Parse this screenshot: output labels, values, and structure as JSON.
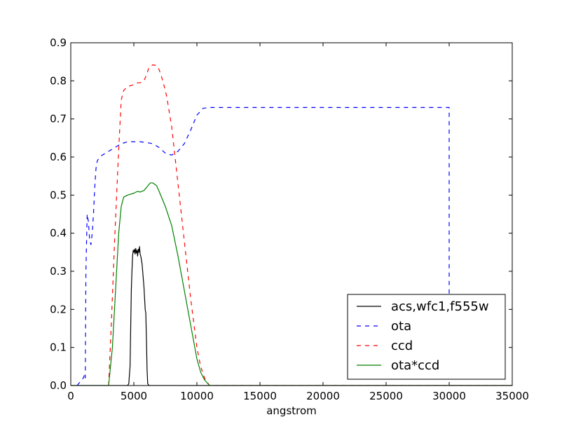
{
  "chart_data": {
    "type": "line",
    "title": "",
    "xlabel": "angstrom",
    "ylabel": "",
    "xlim": [
      0,
      35000
    ],
    "ylim": [
      0,
      0.9
    ],
    "xticks": [
      0,
      5000,
      10000,
      15000,
      20000,
      25000,
      30000,
      35000
    ],
    "xtick_labels": [
      "0",
      "5000",
      "10000",
      "15000",
      "20000",
      "25000",
      "30000",
      "35000"
    ],
    "yticks": [
      0.0,
      0.1,
      0.2,
      0.3,
      0.4,
      0.5,
      0.6,
      0.7,
      0.8,
      0.9
    ],
    "ytick_labels": [
      "0.0",
      "0.1",
      "0.2",
      "0.3",
      "0.4",
      "0.5",
      "0.6",
      "0.7",
      "0.8",
      "0.9"
    ],
    "grid": false,
    "legend_position": "bottom-right",
    "series": [
      {
        "name": "acs,wfc1,f555w",
        "color": "#000000",
        "dash": "solid",
        "points": [
          [
            0,
            0
          ],
          [
            4500,
            0
          ],
          [
            4600,
            0.005
          ],
          [
            4700,
            0.05
          ],
          [
            4750,
            0.15
          ],
          [
            4800,
            0.25
          ],
          [
            4850,
            0.3
          ],
          [
            4900,
            0.34
          ],
          [
            4950,
            0.355
          ],
          [
            5000,
            0.35
          ],
          [
            5050,
            0.358
          ],
          [
            5100,
            0.345
          ],
          [
            5150,
            0.36
          ],
          [
            5200,
            0.348
          ],
          [
            5250,
            0.355
          ],
          [
            5300,
            0.34
          ],
          [
            5350,
            0.358
          ],
          [
            5400,
            0.35
          ],
          [
            5450,
            0.365
          ],
          [
            5500,
            0.345
          ],
          [
            5550,
            0.34
          ],
          [
            5600,
            0.33
          ],
          [
            5650,
            0.32
          ],
          [
            5700,
            0.3
          ],
          [
            5800,
            0.26
          ],
          [
            5900,
            0.2
          ],
          [
            5950,
            0.19
          ],
          [
            6000,
            0.12
          ],
          [
            6050,
            0.04
          ],
          [
            6100,
            0.005
          ],
          [
            6200,
            0
          ],
          [
            35000,
            0
          ]
        ]
      },
      {
        "name": "ota",
        "color": "#0000ff",
        "dash": "dashed",
        "points": [
          [
            500,
            0
          ],
          [
            1000,
            0.02
          ],
          [
            1100,
            0.03
          ],
          [
            1150,
            0.02
          ],
          [
            1200,
            0.3
          ],
          [
            1300,
            0.45
          ],
          [
            1400,
            0.43
          ],
          [
            1500,
            0.38
          ],
          [
            1600,
            0.37
          ],
          [
            1700,
            0.4
          ],
          [
            1800,
            0.45
          ],
          [
            1900,
            0.52
          ],
          [
            2000,
            0.57
          ],
          [
            2100,
            0.59
          ],
          [
            2300,
            0.6
          ],
          [
            2500,
            0.605
          ],
          [
            3000,
            0.615
          ],
          [
            3500,
            0.625
          ],
          [
            4000,
            0.635
          ],
          [
            4500,
            0.64
          ],
          [
            5000,
            0.64
          ],
          [
            5500,
            0.64
          ],
          [
            6000,
            0.638
          ],
          [
            6500,
            0.635
          ],
          [
            7000,
            0.625
          ],
          [
            7500,
            0.61
          ],
          [
            8000,
            0.605
          ],
          [
            8500,
            0.615
          ],
          [
            9000,
            0.635
          ],
          [
            9500,
            0.67
          ],
          [
            10000,
            0.71
          ],
          [
            10500,
            0.728
          ],
          [
            11000,
            0.73
          ],
          [
            12000,
            0.73
          ],
          [
            20000,
            0.73
          ],
          [
            30000,
            0.73
          ],
          [
            30000,
            0.24
          ]
        ]
      },
      {
        "name": "ccd",
        "color": "#ff0000",
        "dash": "dashed",
        "points": [
          [
            3000,
            0
          ],
          [
            3200,
            0.15
          ],
          [
            3500,
            0.4
          ],
          [
            3800,
            0.62
          ],
          [
            4000,
            0.75
          ],
          [
            4200,
            0.775
          ],
          [
            4500,
            0.785
          ],
          [
            5000,
            0.79
          ],
          [
            5300,
            0.795
          ],
          [
            5500,
            0.795
          ],
          [
            5800,
            0.8
          ],
          [
            6000,
            0.815
          ],
          [
            6200,
            0.835
          ],
          [
            6500,
            0.842
          ],
          [
            6800,
            0.84
          ],
          [
            7000,
            0.83
          ],
          [
            7300,
            0.8
          ],
          [
            7600,
            0.76
          ],
          [
            8000,
            0.68
          ],
          [
            8500,
            0.53
          ],
          [
            9000,
            0.38
          ],
          [
            9500,
            0.23
          ],
          [
            10000,
            0.1
          ],
          [
            10300,
            0.05
          ],
          [
            10600,
            0.02
          ],
          [
            11000,
            0
          ],
          [
            35000,
            0
          ]
        ]
      },
      {
        "name": "ota*ccd",
        "color": "#008000",
        "dash": "solid",
        "points": [
          [
            0,
            0
          ],
          [
            3000,
            0
          ],
          [
            3300,
            0.1
          ],
          [
            3600,
            0.28
          ],
          [
            3800,
            0.4
          ],
          [
            4000,
            0.47
          ],
          [
            4200,
            0.495
          ],
          [
            4500,
            0.5
          ],
          [
            5000,
            0.505
          ],
          [
            5300,
            0.51
          ],
          [
            5500,
            0.508
          ],
          [
            5800,
            0.512
          ],
          [
            6000,
            0.52
          ],
          [
            6300,
            0.532
          ],
          [
            6500,
            0.532
          ],
          [
            6800,
            0.525
          ],
          [
            7000,
            0.51
          ],
          [
            7500,
            0.47
          ],
          [
            8000,
            0.42
          ],
          [
            8500,
            0.34
          ],
          [
            9000,
            0.25
          ],
          [
            9500,
            0.16
          ],
          [
            10000,
            0.07
          ],
          [
            10300,
            0.035
          ],
          [
            10600,
            0.015
          ],
          [
            11000,
            0
          ],
          [
            35000,
            0
          ]
        ]
      }
    ]
  }
}
